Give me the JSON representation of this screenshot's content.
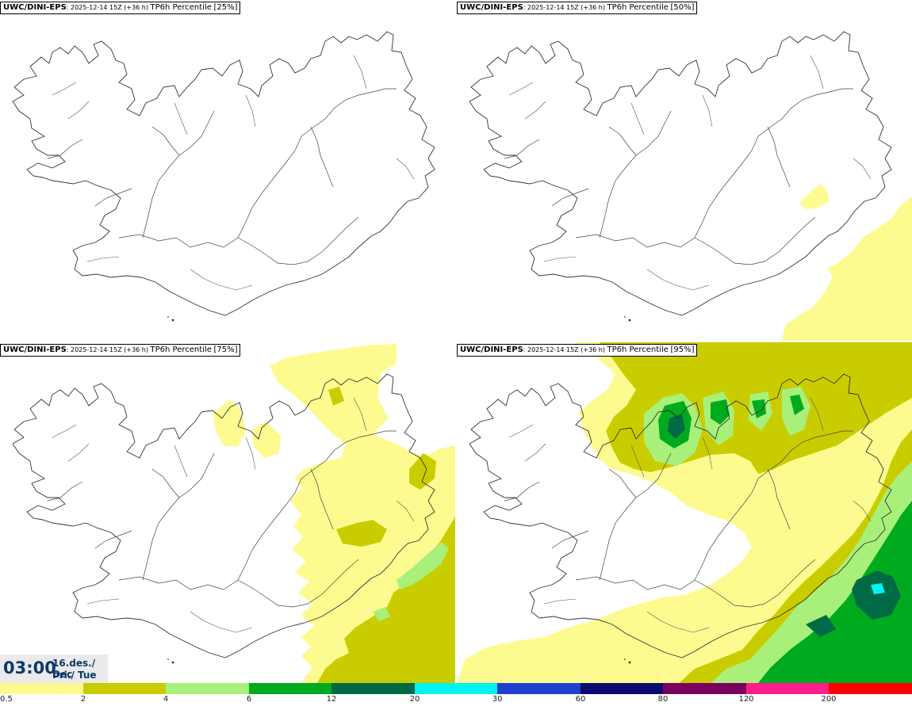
{
  "panels": [
    {
      "model": "UWC/DINI-EPS",
      "run": ": 2025-12-14 15Z (+36 h)",
      "product": "TP6h Percentile",
      "percentile": "[25%]"
    },
    {
      "model": "UWC/DINI-EPS",
      "run": ": 2025-12-14 15Z (+36 h)",
      "product": "TP6h Percentile",
      "percentile": "[50%]"
    },
    {
      "model": "UWC/DINI-EPS",
      "run": ": 2025-12-14 15Z (+36 h)",
      "product": "TP6h Percentile",
      "percentile": "[75%]"
    },
    {
      "model": "UWC/DINI-EPS",
      "run": ": 2025-12-14 15Z (+36 h)",
      "product": "TP6h Percentile",
      "percentile": "[95%]"
    }
  ],
  "valid_time": {
    "time": "03:00",
    "date_line1": "16.des./ Dec",
    "date_line2": "Þri./ Tue"
  },
  "legend": {
    "colors": [
      "#fdfb90",
      "#c9cd00",
      "#a8f07a",
      "#00aa1e",
      "#006a46",
      "#00f5f0",
      "#1f3fd0",
      "#0a0a70",
      "#7a0060",
      "#ff1e8c",
      "#ff0000"
    ],
    "labels": [
      "0.5",
      "2",
      "4",
      "6",
      "12",
      "20",
      "30",
      "60",
      "80",
      "120",
      "200"
    ]
  },
  "colors": {
    "light_yellow": "#fdfb90",
    "olive": "#c9cd00",
    "light_green": "#a8f07a",
    "green": "#00aa1e",
    "dark_green": "#006a46",
    "cyan": "#00f5f0",
    "time_text": "#0b3a66"
  }
}
